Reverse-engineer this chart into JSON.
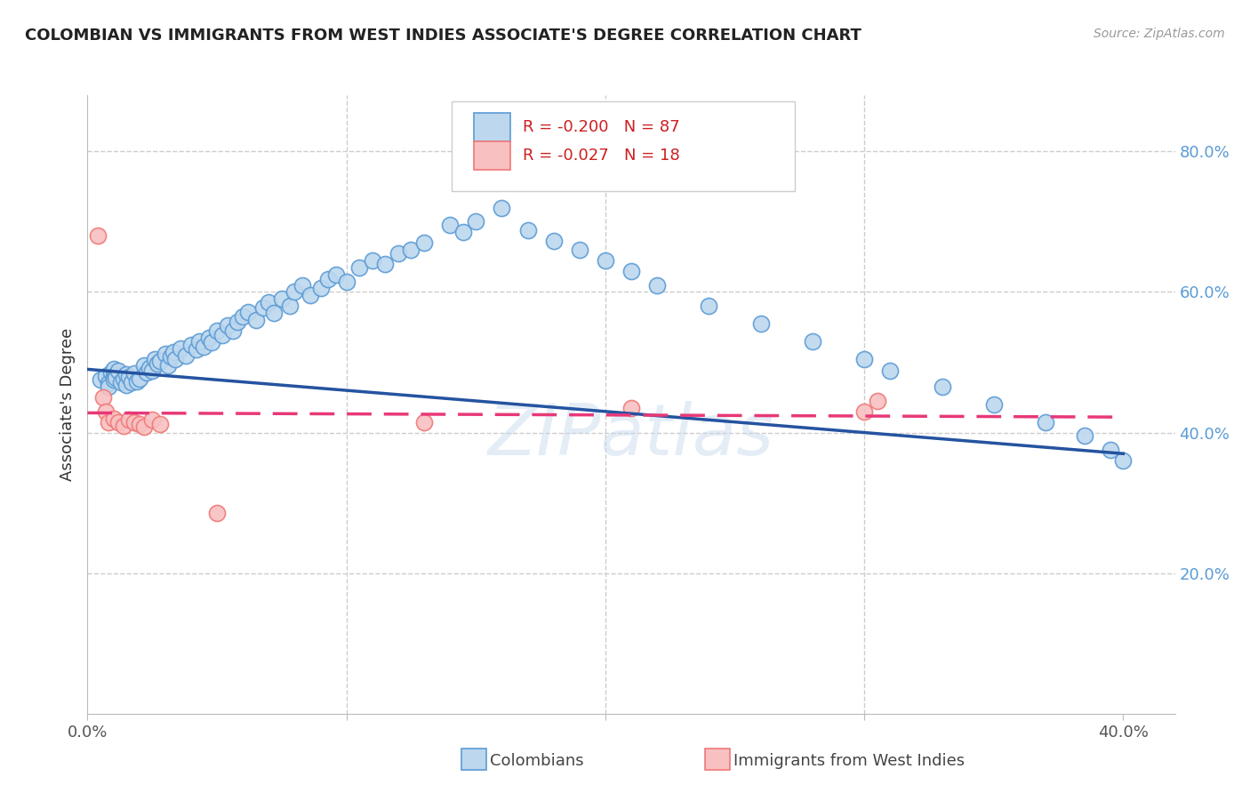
{
  "title": "COLOMBIAN VS IMMIGRANTS FROM WEST INDIES ASSOCIATE'S DEGREE CORRELATION CHART",
  "source": "Source: ZipAtlas.com",
  "ylabel": "Associate's Degree",
  "right_axis_label_color": "#5b9bd5",
  "xlim": [
    0.0,
    0.42
  ],
  "ylim": [
    0.0,
    0.88
  ],
  "x_tick_positions": [
    0.0,
    0.1,
    0.2,
    0.3,
    0.4
  ],
  "x_tick_labels": [
    "0.0%",
    "",
    "",
    "",
    "40.0%"
  ],
  "y_ticks_right": [
    0.2,
    0.4,
    0.6,
    0.8
  ],
  "y_tick_labels_right": [
    "20.0%",
    "40.0%",
    "60.0%",
    "80.0%"
  ],
  "grid_color": "#cccccc",
  "grid_style": "--",
  "legend_R1": "R = -0.200",
  "legend_N1": "N = 87",
  "legend_R2": "R = -0.027",
  "legend_N2": "N = 18",
  "blue_color": "#5b9bd5",
  "blue_fill": "#bdd7ee",
  "pink_color": "#f07878",
  "pink_fill": "#f8c0c0",
  "trend_blue": "#2453a0",
  "trend_pink": "#e83878",
  "blue_scatter_x": [
    0.005,
    0.007,
    0.008,
    0.008,
    0.009,
    0.01,
    0.01,
    0.01,
    0.011,
    0.011,
    0.012,
    0.013,
    0.014,
    0.015,
    0.015,
    0.016,
    0.017,
    0.018,
    0.019,
    0.02,
    0.022,
    0.023,
    0.024,
    0.025,
    0.026,
    0.027,
    0.028,
    0.03,
    0.031,
    0.032,
    0.033,
    0.034,
    0.036,
    0.038,
    0.04,
    0.042,
    0.043,
    0.045,
    0.047,
    0.048,
    0.05,
    0.052,
    0.054,
    0.056,
    0.058,
    0.06,
    0.062,
    0.065,
    0.068,
    0.07,
    0.072,
    0.075,
    0.078,
    0.08,
    0.083,
    0.086,
    0.09,
    0.093,
    0.096,
    0.1,
    0.105,
    0.11,
    0.115,
    0.12,
    0.125,
    0.13,
    0.14,
    0.145,
    0.15,
    0.16,
    0.17,
    0.18,
    0.19,
    0.2,
    0.21,
    0.22,
    0.24,
    0.26,
    0.28,
    0.3,
    0.31,
    0.33,
    0.35,
    0.37,
    0.385,
    0.395,
    0.4
  ],
  "blue_scatter_y": [
    0.475,
    0.48,
    0.47,
    0.465,
    0.485,
    0.49,
    0.48,
    0.475,
    0.482,
    0.478,
    0.488,
    0.472,
    0.476,
    0.483,
    0.468,
    0.479,
    0.471,
    0.484,
    0.473,
    0.477,
    0.495,
    0.485,
    0.492,
    0.488,
    0.505,
    0.498,
    0.502,
    0.512,
    0.495,
    0.508,
    0.515,
    0.505,
    0.52,
    0.51,
    0.525,
    0.518,
    0.53,
    0.522,
    0.535,
    0.528,
    0.545,
    0.538,
    0.552,
    0.545,
    0.558,
    0.565,
    0.572,
    0.56,
    0.578,
    0.585,
    0.57,
    0.59,
    0.58,
    0.6,
    0.61,
    0.595,
    0.605,
    0.618,
    0.625,
    0.615,
    0.635,
    0.645,
    0.64,
    0.655,
    0.66,
    0.67,
    0.695,
    0.685,
    0.7,
    0.72,
    0.688,
    0.672,
    0.66,
    0.645,
    0.63,
    0.61,
    0.58,
    0.555,
    0.53,
    0.505,
    0.488,
    0.465,
    0.44,
    0.415,
    0.395,
    0.375,
    0.36
  ],
  "pink_scatter_x": [
    0.004,
    0.006,
    0.007,
    0.008,
    0.01,
    0.012,
    0.014,
    0.016,
    0.018,
    0.02,
    0.022,
    0.025,
    0.028,
    0.05,
    0.13,
    0.21,
    0.3,
    0.305
  ],
  "pink_scatter_y": [
    0.68,
    0.45,
    0.43,
    0.415,
    0.42,
    0.415,
    0.41,
    0.418,
    0.415,
    0.412,
    0.408,
    0.418,
    0.412,
    0.285,
    0.415,
    0.435,
    0.43,
    0.445
  ],
  "blue_line_x": [
    0.0,
    0.4
  ],
  "blue_line_y": [
    0.49,
    0.37
  ],
  "pink_line_x": [
    0.0,
    0.4
  ],
  "pink_line_y": [
    0.428,
    0.422
  ],
  "watermark": "ZIPatlas",
  "bottom_legend": [
    {
      "label": "Colombians",
      "color_fill": "#bdd7ee",
      "color_edge": "#5b9bd5"
    },
    {
      "label": "Immigrants from West Indies",
      "color_fill": "#f8c0c0",
      "color_edge": "#f07878"
    }
  ]
}
